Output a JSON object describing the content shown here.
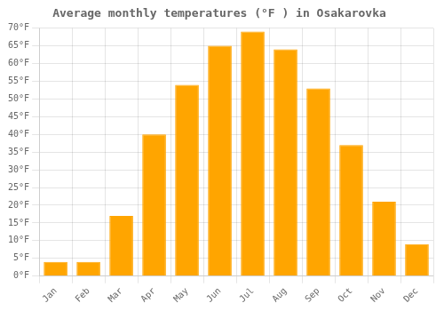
{
  "chart_data": {
    "type": "bar",
    "title": "Average monthly temperatures (°F ) in Osakarovka",
    "categories": [
      "Jan",
      "Feb",
      "Mar",
      "Apr",
      "May",
      "Jun",
      "Jul",
      "Aug",
      "Sep",
      "Oct",
      "Nov",
      "Dec"
    ],
    "values": [
      4,
      4,
      17,
      40,
      54,
      65,
      69,
      64,
      53,
      37,
      21,
      9
    ],
    "color": "#FFA500",
    "ylim": [
      0,
      70
    ],
    "yticks": [
      {
        "value": 0,
        "label": "0°F"
      },
      {
        "value": 5,
        "label": "5°F"
      },
      {
        "value": 10,
        "label": "10°F"
      },
      {
        "value": 15,
        "label": "15°F"
      },
      {
        "value": 20,
        "label": "20°F"
      },
      {
        "value": 25,
        "label": "25°F"
      },
      {
        "value": 30,
        "label": "30°F"
      },
      {
        "value": 35,
        "label": "35°F"
      },
      {
        "value": 40,
        "label": "40°F"
      },
      {
        "value": 45,
        "label": "45°F"
      },
      {
        "value": 50,
        "label": "50°F"
      },
      {
        "value": 55,
        "label": "55°F"
      },
      {
        "value": 60,
        "label": "60°F"
      },
      {
        "value": 65,
        "label": "65°F"
      },
      {
        "value": 70,
        "label": "70°F"
      }
    ],
    "grid": true
  }
}
